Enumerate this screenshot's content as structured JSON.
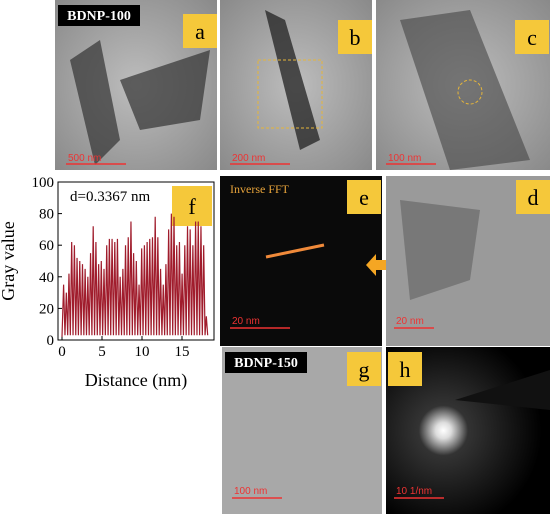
{
  "figure": {
    "row1": {
      "sample": "BDNP-100",
      "a": {
        "label": "a",
        "scale": "500 nm"
      },
      "b": {
        "label": "b",
        "scale": "200 nm"
      },
      "c": {
        "label": "c",
        "scale": "100 nm"
      }
    },
    "row2": {
      "e": {
        "label": "e",
        "title": "Inverse FFT",
        "scale": "20 nm"
      },
      "d": {
        "label": "d",
        "scale": "20 nm"
      }
    },
    "row3": {
      "sample": "BDNP-150",
      "g": {
        "label": "g",
        "scale": "100 nm"
      },
      "h": {
        "label": "h",
        "scale": "10 1/nm"
      }
    }
  },
  "chart_data": {
    "type": "line",
    "panel_label": "f",
    "annotation": "d=0.3367 nm",
    "xlabel": "Distance (nm)",
    "ylabel": "Gray value",
    "color": "#a01c2c",
    "xlim": [
      -0.5,
      19
    ],
    "xticks": [
      0,
      5,
      10,
      15
    ],
    "ylim": [
      0,
      100
    ],
    "yticks": [
      0,
      20,
      40,
      60,
      80,
      100
    ],
    "x": [
      0,
      0.2,
      0.37,
      0.54,
      0.71,
      0.87,
      1.04,
      1.21,
      1.38,
      1.55,
      1.72,
      1.88,
      2.05,
      2.22,
      2.39,
      2.56,
      2.73,
      2.89,
      3.06,
      3.23,
      3.4,
      3.57,
      3.74,
      3.9,
      4.07,
      4.24,
      4.41,
      4.58,
      4.75,
      4.91,
      5.08,
      5.25,
      5.42,
      5.59,
      5.76,
      5.92,
      6.09,
      6.26,
      6.43,
      6.6,
      6.77,
      6.93,
      7.1,
      7.27,
      7.44,
      7.61,
      7.78,
      7.94,
      8.11,
      8.28,
      8.45,
      8.62,
      8.79,
      8.95,
      9.12,
      9.29,
      9.46,
      9.63,
      9.8,
      9.96,
      10.13,
      10.3,
      10.47,
      10.64,
      10.81,
      10.97,
      11.14,
      11.31,
      11.48,
      11.65,
      11.82,
      11.98,
      12.15,
      12.32,
      12.49,
      12.66,
      12.83,
      12.99,
      13.16,
      13.33,
      13.5,
      13.67,
      13.84,
      14.0,
      14.17,
      14.34,
      14.51,
      14.68,
      14.85,
      15.01,
      15.18,
      15.35,
      15.52,
      15.69,
      15.86,
      16.02,
      16.19,
      16.36,
      16.53,
      16.7,
      16.87,
      17.03,
      17.2,
      17.37,
      17.54,
      17.71,
      17.88,
      18.04,
      18.21
    ],
    "values": [
      2,
      35,
      3,
      30,
      3,
      42,
      3,
      62,
      3,
      60,
      3,
      52,
      3,
      50,
      3,
      48,
      3,
      45,
      3,
      40,
      3,
      55,
      3,
      72,
      3,
      62,
      3,
      48,
      3,
      50,
      3,
      45,
      3,
      60,
      3,
      64,
      3,
      64,
      3,
      62,
      3,
      64,
      3,
      40,
      3,
      45,
      3,
      60,
      3,
      65,
      3,
      75,
      3,
      55,
      3,
      50,
      3,
      35,
      3,
      58,
      3,
      60,
      3,
      62,
      3,
      64,
      3,
      65,
      3,
      78,
      3,
      65,
      3,
      45,
      3,
      35,
      3,
      48,
      3,
      70,
      3,
      80,
      3,
      78,
      3,
      60,
      3,
      62,
      3,
      42,
      3,
      60,
      3,
      72,
      3,
      70,
      3,
      60,
      3,
      75,
      3,
      75,
      3,
      72,
      3,
      60,
      3,
      15,
      3
    ]
  }
}
